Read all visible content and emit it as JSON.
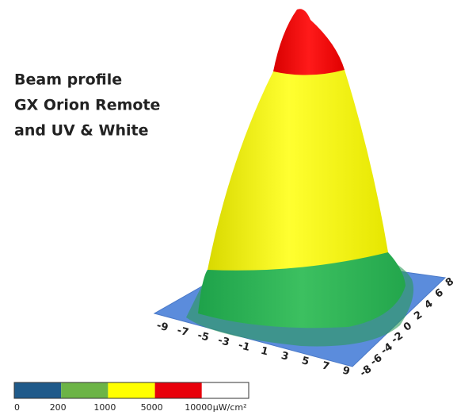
{
  "title": [
    "Beam profile",
    "GX Orion Remote",
    "and UV & White"
  ],
  "x_axis_ticks": [
    -9,
    -7,
    -5,
    -3,
    -1,
    1,
    3,
    5,
    7,
    9
  ],
  "y_axis_ticks": [
    -8,
    -6,
    -4,
    -2,
    0,
    2,
    4,
    6,
    8
  ],
  "legend": {
    "labels": [
      0,
      200,
      1000,
      5000,
      10000
    ],
    "unit": "µW/cm²",
    "colors": [
      "#1f5a8a",
      "#6cb446",
      "#ffff00",
      "#e8000b",
      "#ffffff"
    ]
  }
}
